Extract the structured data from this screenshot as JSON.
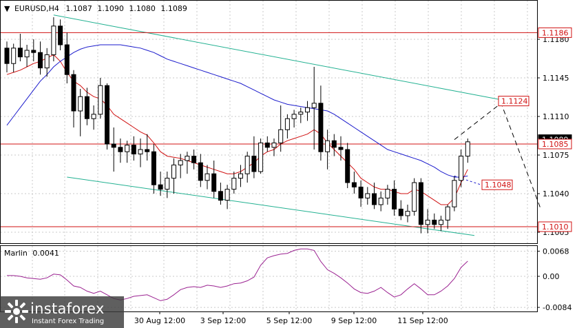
{
  "header": {
    "symbol": "EURUSD,H4",
    "open": "1.1087",
    "high": "1.1090",
    "low": "1.1080",
    "close": "1.1089"
  },
  "indicator": {
    "name": "Marlin",
    "value": "0.0041",
    "ticks": [
      "0.0068",
      "0.00",
      "-0.0084"
    ]
  },
  "logo": {
    "name": "instaforex",
    "tagline": "Instant Forex Trading"
  },
  "colors": {
    "background": "#ffffff",
    "frame": "#000000",
    "grid": "#c8c8c8",
    "candle": "#000000",
    "level_line": "#d01010",
    "red_ma": "#d01010",
    "blue_ma": "#1a1acc",
    "channel": "#20b090",
    "oscillator": "#9a2090",
    "forecast": "#000000"
  },
  "chart_data": {
    "type": "candlestick",
    "timeframe": "H4",
    "ylim": [
      1.0995,
      1.1215
    ],
    "price_axis_ticks": [
      1.1005,
      1.104,
      1.1075,
      1.111,
      1.1145,
      1.118
    ],
    "x_tick_labels": [
      "30 Aug 12:00",
      "3 Sep 12:00",
      "5 Sep 12:00",
      "9 Sep 12:00",
      "11 Sep 12:00"
    ],
    "levels": [
      {
        "value": 1.1186,
        "label": "1.1186"
      },
      {
        "value": 1.1085,
        "label": "1.1085"
      },
      {
        "value": 1.101,
        "label": "1.1010"
      }
    ],
    "forecast_labels": [
      {
        "value": 1.1124,
        "label": "1.1124"
      },
      {
        "value": 1.1048,
        "label": "1.1048"
      }
    ],
    "current_price_label": "1.1089",
    "forecast_path": [
      {
        "bar": 67,
        "price": 1.1089
      },
      {
        "bar": 74,
        "price": 1.1122
      },
      {
        "bar": 80,
        "price": 1.1025
      }
    ],
    "blue_ma_projection": [
      {
        "bar": 67,
        "price": 1.1056
      },
      {
        "bar": 71,
        "price": 1.1048
      }
    ],
    "channel_upper": [
      {
        "bar": 7,
        "price": 1.1202
      },
      {
        "bar": 75,
        "price": 1.1124
      }
    ],
    "channel_lower": [
      {
        "bar": 9,
        "price": 1.1055
      },
      {
        "bar": 70,
        "price": 1.1002
      }
    ],
    "candles": [
      [
        1.1172,
        1.1178,
        1.115,
        1.1158
      ],
      [
        1.1158,
        1.1176,
        1.115,
        1.1172
      ],
      [
        1.1172,
        1.1185,
        1.116,
        1.1164
      ],
      [
        1.1164,
        1.1175,
        1.1155,
        1.117
      ],
      [
        1.117,
        1.118,
        1.116,
        1.1168
      ],
      [
        1.1168,
        1.1178,
        1.1148,
        1.1154
      ],
      [
        1.1154,
        1.1172,
        1.1146,
        1.1166
      ],
      [
        1.1166,
        1.12,
        1.116,
        1.1192
      ],
      [
        1.1192,
        1.1198,
        1.117,
        1.1175
      ],
      [
        1.1175,
        1.1186,
        1.114,
        1.1148
      ],
      [
        1.1148,
        1.1152,
        1.11,
        1.1115
      ],
      [
        1.1115,
        1.1135,
        1.1092,
        1.1128
      ],
      [
        1.1128,
        1.1136,
        1.1102,
        1.1108
      ],
      [
        1.1108,
        1.112,
        1.1098,
        1.1112
      ],
      [
        1.1112,
        1.1145,
        1.1108,
        1.1138
      ],
      [
        1.1138,
        1.114,
        1.108,
        1.1085
      ],
      [
        1.1085,
        1.11,
        1.106,
        1.1082
      ],
      [
        1.1082,
        1.109,
        1.1068,
        1.1078
      ],
      [
        1.1078,
        1.1088,
        1.1068,
        1.1084
      ],
      [
        1.1084,
        1.1092,
        1.107,
        1.1076
      ],
      [
        1.1076,
        1.109,
        1.1064,
        1.108
      ],
      [
        1.108,
        1.1094,
        1.107,
        1.1078
      ],
      [
        1.1078,
        1.1085,
        1.104,
        1.1048
      ],
      [
        1.1048,
        1.106,
        1.1038,
        1.1044
      ],
      [
        1.1044,
        1.106,
        1.1036,
        1.1054
      ],
      [
        1.1054,
        1.1072,
        1.104,
        1.1066
      ],
      [
        1.1066,
        1.1076,
        1.1054,
        1.107
      ],
      [
        1.107,
        1.1078,
        1.1058,
        1.1074
      ],
      [
        1.1074,
        1.108,
        1.1062,
        1.1068
      ],
      [
        1.1068,
        1.1076,
        1.1046,
        1.1052
      ],
      [
        1.1052,
        1.1066,
        1.1044,
        1.1058
      ],
      [
        1.1058,
        1.107,
        1.1036,
        1.1042
      ],
      [
        1.1042,
        1.105,
        1.103,
        1.1034
      ],
      [
        1.1034,
        1.1048,
        1.1026,
        1.1044
      ],
      [
        1.1044,
        1.106,
        1.104,
        1.1054
      ],
      [
        1.1054,
        1.1066,
        1.1046,
        1.1058
      ],
      [
        1.1058,
        1.1078,
        1.105,
        1.1074
      ],
      [
        1.1074,
        1.1092,
        1.1054,
        1.106
      ],
      [
        1.106,
        1.109,
        1.1058,
        1.1086
      ],
      [
        1.1086,
        1.1092,
        1.1078,
        1.1082
      ],
      [
        1.1082,
        1.109,
        1.1074,
        1.1086
      ],
      [
        1.1086,
        1.112,
        1.1078,
        1.1098
      ],
      [
        1.1098,
        1.1112,
        1.109,
        1.1108
      ],
      [
        1.1108,
        1.1116,
        1.11,
        1.1112
      ],
      [
        1.1112,
        1.1118,
        1.1104,
        1.1114
      ],
      [
        1.1114,
        1.1124,
        1.1106,
        1.1118
      ],
      [
        1.1118,
        1.1155,
        1.108,
        1.1122
      ],
      [
        1.1122,
        1.1138,
        1.107,
        1.1078
      ],
      [
        1.1078,
        1.1098,
        1.1062,
        1.1088
      ],
      [
        1.1088,
        1.1094,
        1.1074,
        1.1082
      ],
      [
        1.1082,
        1.1092,
        1.107,
        1.108
      ],
      [
        1.108,
        1.1086,
        1.1045,
        1.105
      ],
      [
        1.105,
        1.106,
        1.104,
        1.1046
      ],
      [
        1.1046,
        1.1052,
        1.1028,
        1.1036
      ],
      [
        1.1036,
        1.1046,
        1.103,
        1.104
      ],
      [
        1.104,
        1.105,
        1.1026,
        1.103
      ],
      [
        1.103,
        1.1042,
        1.1024,
        1.1036
      ],
      [
        1.1036,
        1.1048,
        1.103,
        1.1044
      ],
      [
        1.1044,
        1.1052,
        1.102,
        1.1026
      ],
      [
        1.1026,
        1.1034,
        1.1016,
        1.102
      ],
      [
        1.102,
        1.103,
        1.1014,
        1.1024
      ],
      [
        1.1024,
        1.1054,
        1.102,
        1.105
      ],
      [
        1.105,
        1.1054,
        1.1004,
        1.1012
      ],
      [
        1.1012,
        1.1026,
        1.1004,
        1.1016
      ],
      [
        1.1016,
        1.1022,
        1.1008,
        1.1012
      ],
      [
        1.1012,
        1.102,
        1.1006,
        1.1016
      ],
      [
        1.1016,
        1.103,
        1.1008,
        1.1028
      ],
      [
        1.1028,
        1.1056,
        1.1024,
        1.1052
      ],
      [
        1.1052,
        1.108,
        1.1046,
        1.1074
      ],
      [
        1.1074,
        1.109,
        1.1068,
        1.1087
      ]
    ],
    "red_ma": [
      1.1148,
      1.115,
      1.1152,
      1.1155,
      1.1158,
      1.116,
      1.1163,
      1.1166,
      1.116,
      1.115,
      1.1142,
      1.1138,
      1.1132,
      1.1128,
      1.1126,
      1.112,
      1.1112,
      1.1108,
      1.1104,
      1.11,
      1.1096,
      1.1093,
      1.1086,
      1.1078,
      1.1074,
      1.1073,
      1.1072,
      1.107,
      1.1068,
      1.1066,
      1.1064,
      1.1062,
      1.106,
      1.1058,
      1.1058,
      1.106,
      1.1064,
      1.1068,
      1.1074,
      1.1078,
      1.108,
      1.1085,
      1.1088,
      1.109,
      1.1092,
      1.1094,
      1.1098,
      1.1094,
      1.1086,
      1.108,
      1.1074,
      1.1068,
      1.1062,
      1.1054,
      1.105,
      1.1046,
      1.1044,
      1.1044,
      1.1042,
      1.104,
      1.104,
      1.1044,
      1.1042,
      1.1038,
      1.1034,
      1.103,
      1.103,
      1.1036,
      1.105,
      1.1062
    ],
    "blue_ma": [
      1.1102,
      1.111,
      1.1118,
      1.1126,
      1.1134,
      1.1142,
      1.1148,
      1.1155,
      1.116,
      1.1164,
      1.1168,
      1.1171,
      1.1173,
      1.1174,
      1.1175,
      1.1175,
      1.1175,
      1.1175,
      1.1174,
      1.1173,
      1.1172,
      1.117,
      1.1168,
      1.1165,
      1.1162,
      1.116,
      1.1158,
      1.1156,
      1.1154,
      1.1152,
      1.115,
      1.1148,
      1.1146,
      1.1144,
      1.1142,
      1.114,
      1.1137,
      1.1134,
      1.1131,
      1.1128,
      1.1125,
      1.1123,
      1.1121,
      1.112,
      1.1119,
      1.1118,
      1.1117,
      1.1116,
      1.1115,
      1.1112,
      1.1108,
      1.1104,
      1.11,
      1.1096,
      1.1092,
      1.1088,
      1.1084,
      1.108,
      1.1078,
      1.1076,
      1.1074,
      1.1072,
      1.107,
      1.1067,
      1.1064,
      1.106,
      1.1057,
      1.1055,
      1.1055,
      1.1056
    ],
    "oscillator": {
      "ylim": [
        -0.0095,
        0.0082
      ],
      "values": [
        0.0002,
        0.0002,
        0.0,
        -0.0004,
        -0.0006,
        -0.0008,
        -0.0004,
        0.0006,
        0.0004,
        -0.001,
        -0.0026,
        -0.003,
        -0.004,
        -0.0046,
        -0.004,
        -0.005,
        -0.006,
        -0.0064,
        -0.006,
        -0.0054,
        -0.0052,
        -0.005,
        -0.0058,
        -0.0066,
        -0.0062,
        -0.005,
        -0.0036,
        -0.003,
        -0.0028,
        -0.003,
        -0.0024,
        -0.0026,
        -0.003,
        -0.0026,
        -0.002,
        -0.0018,
        -0.0012,
        -0.0002,
        0.003,
        0.005,
        0.0056,
        0.006,
        0.0062,
        0.007,
        0.0074,
        0.0074,
        0.007,
        0.004,
        0.0018,
        0.0008,
        -0.0004,
        -0.0018,
        -0.0034,
        -0.0044,
        -0.0046,
        -0.004,
        -0.003,
        -0.0044,
        -0.0056,
        -0.005,
        -0.0034,
        -0.002,
        -0.0034,
        -0.005,
        -0.005,
        -0.004,
        -0.0026,
        -0.0006,
        0.0024,
        0.0041
      ]
    }
  }
}
